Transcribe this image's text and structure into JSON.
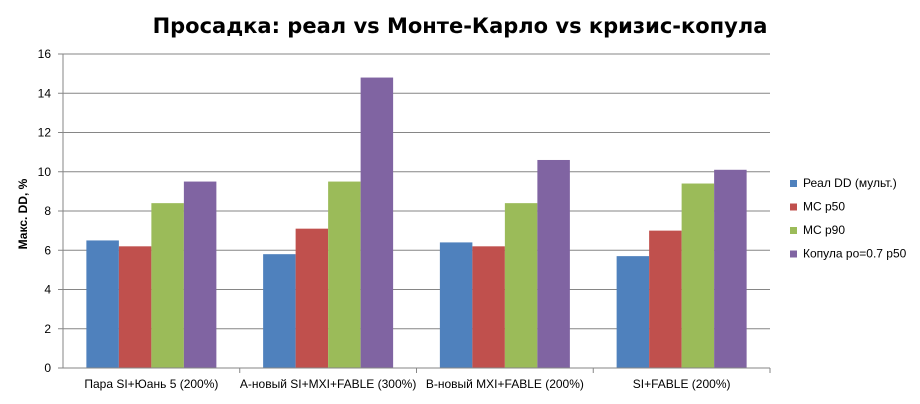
{
  "chart_data": {
    "type": "bar",
    "title": "Просадка: реал vs Монте-Карло vs кризис-копула",
    "xlabel": "",
    "ylabel": "Макс. DD, %",
    "ylim": [
      0,
      16
    ],
    "yticks": [
      0,
      2,
      4,
      6,
      8,
      10,
      12,
      14,
      16
    ],
    "grid": true,
    "legend_position": "right",
    "categories": [
      "Пара SI+Юань 5 (200%)",
      "A-новый SI+MXI+FABLE (300%)",
      "B-новый MXI+FABLE (200%)",
      "SI+FABLE (200%)"
    ],
    "series": [
      {
        "name": "Реал DD (мульт.)",
        "color": "#4F81BD",
        "values": [
          6.5,
          5.8,
          6.4,
          5.7
        ]
      },
      {
        "name": "MC p50",
        "color": "#C0504D",
        "values": [
          6.2,
          7.1,
          6.2,
          7.0
        ]
      },
      {
        "name": "MC p90",
        "color": "#9BBB59",
        "values": [
          8.4,
          9.5,
          8.4,
          9.4
        ]
      },
      {
        "name": "Копула ро=0.7 p50",
        "color": "#8064A2",
        "values": [
          9.5,
          14.8,
          10.6,
          10.1
        ]
      }
    ]
  }
}
